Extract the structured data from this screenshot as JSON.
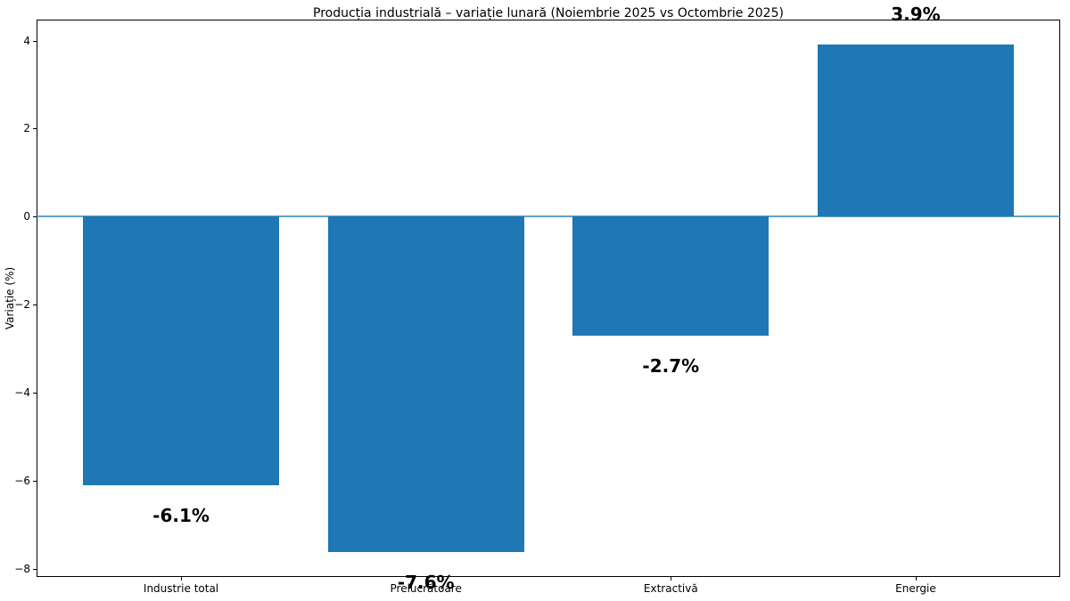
{
  "chart_data": {
    "type": "bar",
    "title": "Producția industrială – variație lunară (Noiembrie 2025 vs Octombrie 2025)",
    "xlabel": "",
    "ylabel": "Variație (%)",
    "categories": [
      "Industrie total",
      "Prelucrătoare",
      "Extractivă",
      "Energie"
    ],
    "values": [
      -6.1,
      -7.6,
      -2.7,
      3.9
    ],
    "bar_labels": [
      "-6.1%",
      "-7.6%",
      "-2.7%",
      "3.9%"
    ],
    "yticks": [
      4,
      2,
      0,
      -2,
      -4,
      -6,
      -8
    ],
    "ylim": [
      -8.175,
      4.475
    ],
    "xlim": [
      -0.59,
      3.59
    ],
    "bar_width_fraction": 0.8,
    "grid": false,
    "legend": null,
    "bar_color": "#1f77b4",
    "zero_line_color": "#1f77b4",
    "axis_color": "#000000",
    "background_color": "#ffffff"
  }
}
